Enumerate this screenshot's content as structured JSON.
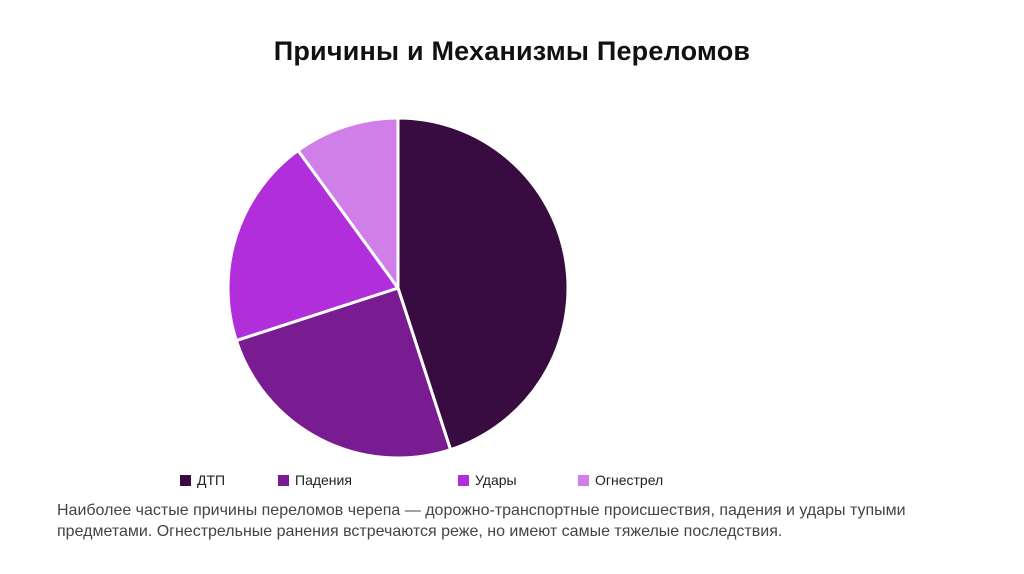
{
  "slide": {
    "title": "Причины и Механизмы Переломов",
    "caption": "Наиболее частые причины переломов черепа — дорожно-транспортные происшествия, падения и удары тупыми предметами. Огнестрельные ранения встречаются реже, но имеют самые тяжелые последствия."
  },
  "chart_data": {
    "type": "pie",
    "categories": [
      "ДТП",
      "Падения",
      "Удары",
      "Огнестрел"
    ],
    "values": [
      45,
      25,
      20,
      10
    ],
    "colors": [
      "#380c40",
      "#7a1c91",
      "#b12fdb",
      "#d07fe8"
    ],
    "start_angle_deg": 0,
    "direction": "clockwise",
    "legend_position": "bottom"
  }
}
